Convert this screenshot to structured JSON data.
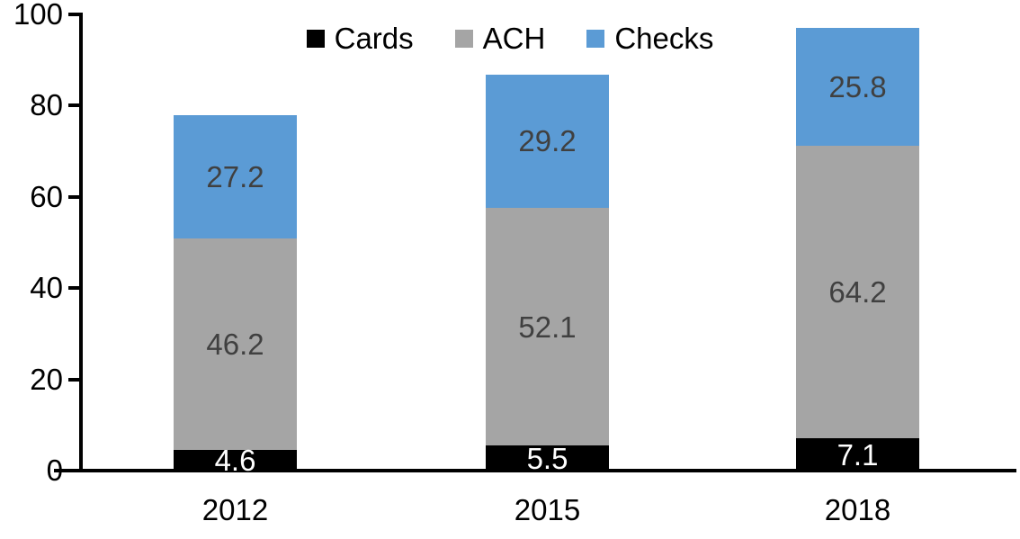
{
  "chart_data": {
    "type": "bar",
    "stacked": true,
    "title": "",
    "xlabel": "",
    "ylabel": "",
    "categories": [
      "2012",
      "2015",
      "2018"
    ],
    "series": [
      {
        "name": "Cards",
        "color": "#000000",
        "label_color": "#FFFFFF",
        "values": [
          4.6,
          5.5,
          7.1
        ]
      },
      {
        "name": "ACH",
        "color": "#A5A5A5",
        "label_color": "#404040",
        "values": [
          46.2,
          52.1,
          64.2
        ]
      },
      {
        "name": "Checks",
        "color": "#5B9BD5",
        "label_color": "#404040",
        "values": [
          27.2,
          29.2,
          25.8
        ]
      }
    ],
    "totals": [
      78.0,
      86.8,
      97.1
    ],
    "y_ticks": [
      0,
      20,
      40,
      60,
      80,
      100
    ],
    "ylim": [
      0,
      100
    ],
    "grid": false,
    "legend_position": "top-center",
    "axis_color": "#000000",
    "background_color": "#FFFFFF"
  }
}
